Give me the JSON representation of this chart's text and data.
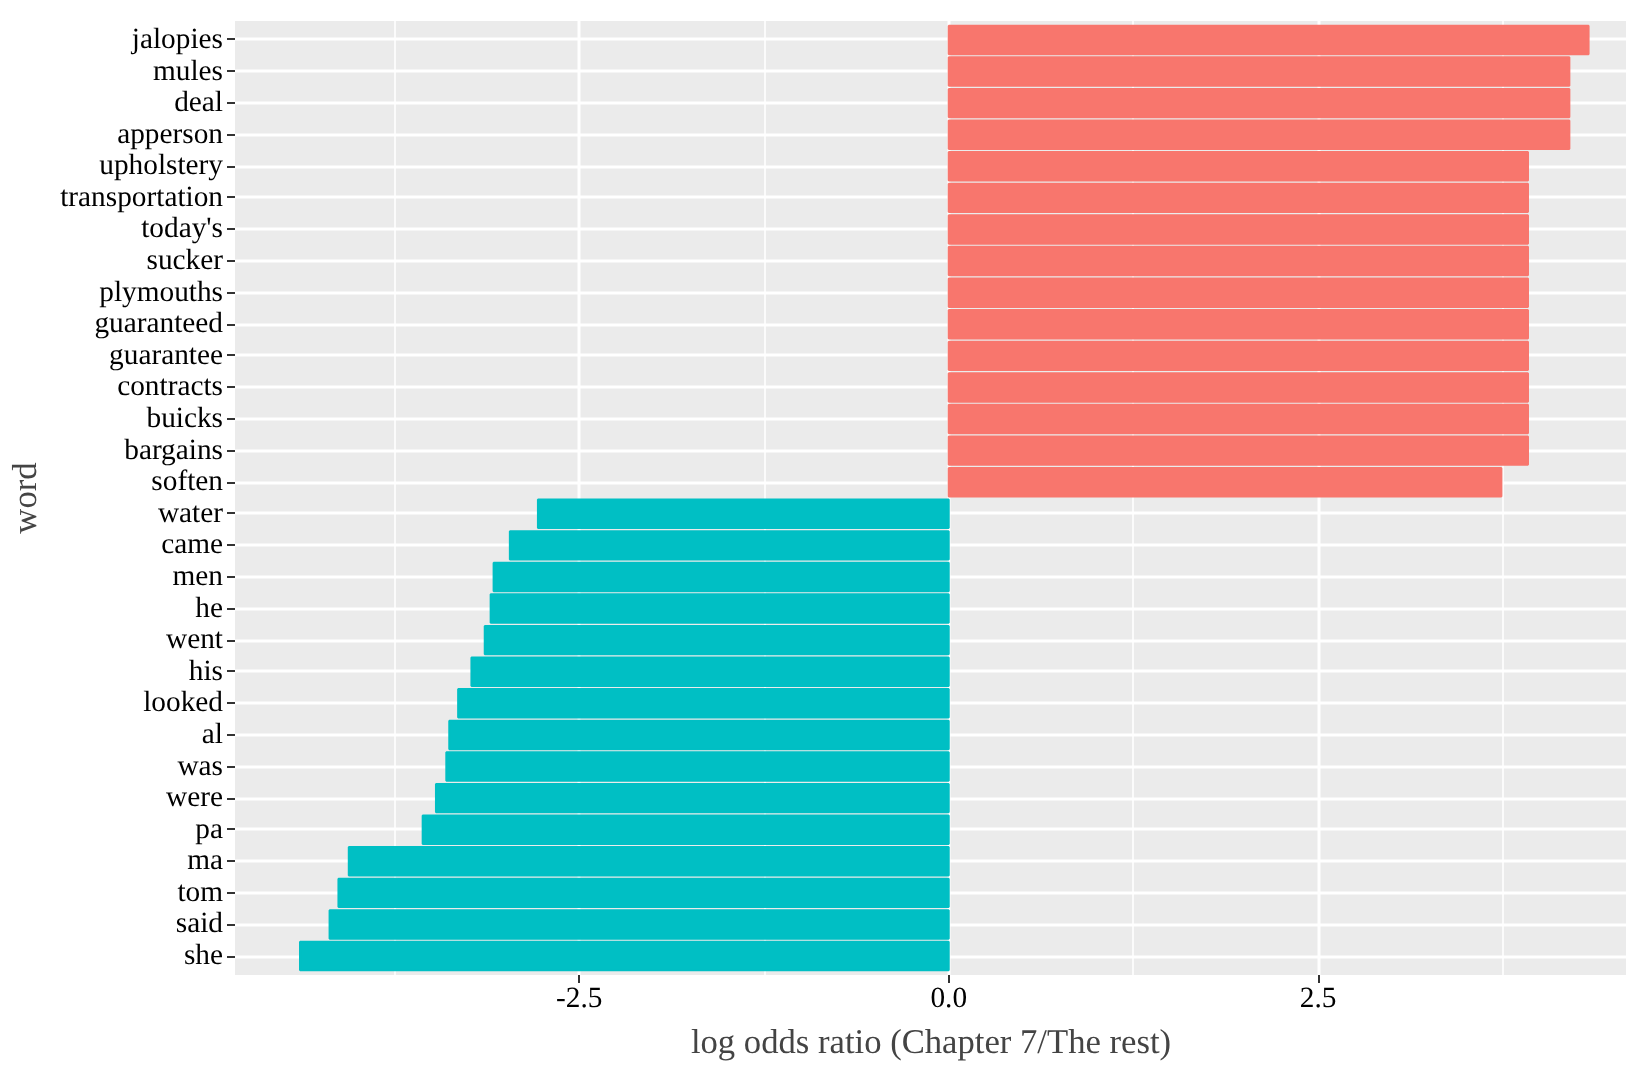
{
  "chart_data": {
    "type": "bar",
    "orientation": "horizontal",
    "xlabel": "log odds ratio (Chapter 7/The rest)",
    "ylabel": "word",
    "categories": [
      "jalopies",
      "mules",
      "deal",
      "apperson",
      "upholstery",
      "transportation",
      "today's",
      "sucker",
      "plymouths",
      "guaranteed",
      "guarantee",
      "contracts",
      "buicks",
      "bargains",
      "soften",
      "water",
      "came",
      "men",
      "he",
      "went",
      "his",
      "looked",
      "al",
      "was",
      "were",
      "pa",
      "ma",
      "tom",
      "said",
      "she"
    ],
    "values": [
      4.33,
      4.2,
      4.2,
      4.2,
      3.92,
      3.92,
      3.92,
      3.92,
      3.92,
      3.92,
      3.92,
      3.92,
      3.92,
      3.92,
      3.74,
      -2.78,
      -2.97,
      -3.08,
      -3.1,
      -3.14,
      -3.23,
      -3.32,
      -3.38,
      -3.4,
      -3.47,
      -3.56,
      -4.06,
      -4.13,
      -4.19,
      -4.39
    ],
    "colors": [
      "#f8766d",
      "#f8766d",
      "#f8766d",
      "#f8766d",
      "#f8766d",
      "#f8766d",
      "#f8766d",
      "#f8766d",
      "#f8766d",
      "#f8766d",
      "#f8766d",
      "#f8766d",
      "#f8766d",
      "#f8766d",
      "#f8766d",
      "#00bfc4",
      "#00bfc4",
      "#00bfc4",
      "#00bfc4",
      "#00bfc4",
      "#00bfc4",
      "#00bfc4",
      "#00bfc4",
      "#00bfc4",
      "#00bfc4",
      "#00bfc4",
      "#00bfc4",
      "#00bfc4",
      "#00bfc4",
      "#00bfc4"
    ],
    "xlim": [
      -4.83,
      4.59
    ],
    "xticks": [
      {
        "value": -2.5,
        "label": "-2.5"
      },
      {
        "value": 0,
        "label": "0.0"
      },
      {
        "value": 2.5,
        "label": "2.5"
      }
    ],
    "grid": true
  }
}
